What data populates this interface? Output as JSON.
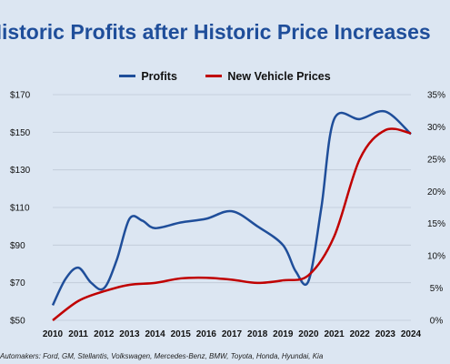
{
  "title": "Historic Profits after Historic Price Increases",
  "footnote": "Automakers: Ford, GM, Stellantis, Volkswagen, Mercedes-Benz, BMW, Toyota, Honda, Hyundai, Kia",
  "colors": {
    "profits": "#1f4e9a",
    "prices": "#c00000",
    "title": "#1f4e9a",
    "background": "#dce6f2",
    "grid": "#bfc9d6"
  },
  "chart_data": {
    "type": "line",
    "x": [
      2010,
      2010.5,
      2011,
      2011.5,
      2012,
      2012.5,
      2013,
      2013.5,
      2014,
      2015,
      2016,
      2017,
      2018,
      2019,
      2019.5,
      2020,
      2020.5,
      2021,
      2022,
      2023,
      2024
    ],
    "y_left_ticks": [
      "$50",
      "$70",
      "$90",
      "$110",
      "$130",
      "$150",
      "$170"
    ],
    "y_right_ticks": [
      "0%",
      "5%",
      "10%",
      "15%",
      "20%",
      "25%",
      "30%",
      "35%"
    ],
    "ylim_left": [
      50,
      170
    ],
    "ylim_right": [
      0,
      35
    ],
    "x_ticks": [
      "2010",
      "2011",
      "2012",
      "2013",
      "2014",
      "2015",
      "2016",
      "2017",
      "2018",
      "2019",
      "2020",
      "2021",
      "2022",
      "2023",
      "2024"
    ],
    "legend_position": "top",
    "grid": "horizontal",
    "series": [
      {
        "name": "Profits",
        "axis": "left",
        "x": [
          2010,
          2010.5,
          2011,
          2011.5,
          2012,
          2012.5,
          2013,
          2013.5,
          2014,
          2015,
          2016,
          2017,
          2018,
          2019,
          2019.5,
          2020,
          2020.5,
          2021,
          2022,
          2023,
          2024
        ],
        "values": [
          58,
          72,
          78,
          70,
          67,
          82,
          104,
          103,
          99,
          102,
          104,
          108,
          100,
          90,
          76,
          71,
          110,
          157,
          157,
          161,
          149
        ]
      },
      {
        "name": "New Vehicle Prices",
        "axis": "right",
        "x": [
          2010,
          2011,
          2012,
          2013,
          2014,
          2015,
          2016,
          2017,
          2018,
          2019,
          2020,
          2021,
          2022,
          2023,
          2024
        ],
        "values": [
          0,
          3,
          4.5,
          5.5,
          5.8,
          6.5,
          6.6,
          6.3,
          5.8,
          6.2,
          7,
          13,
          25,
          29.5,
          29
        ]
      }
    ]
  }
}
